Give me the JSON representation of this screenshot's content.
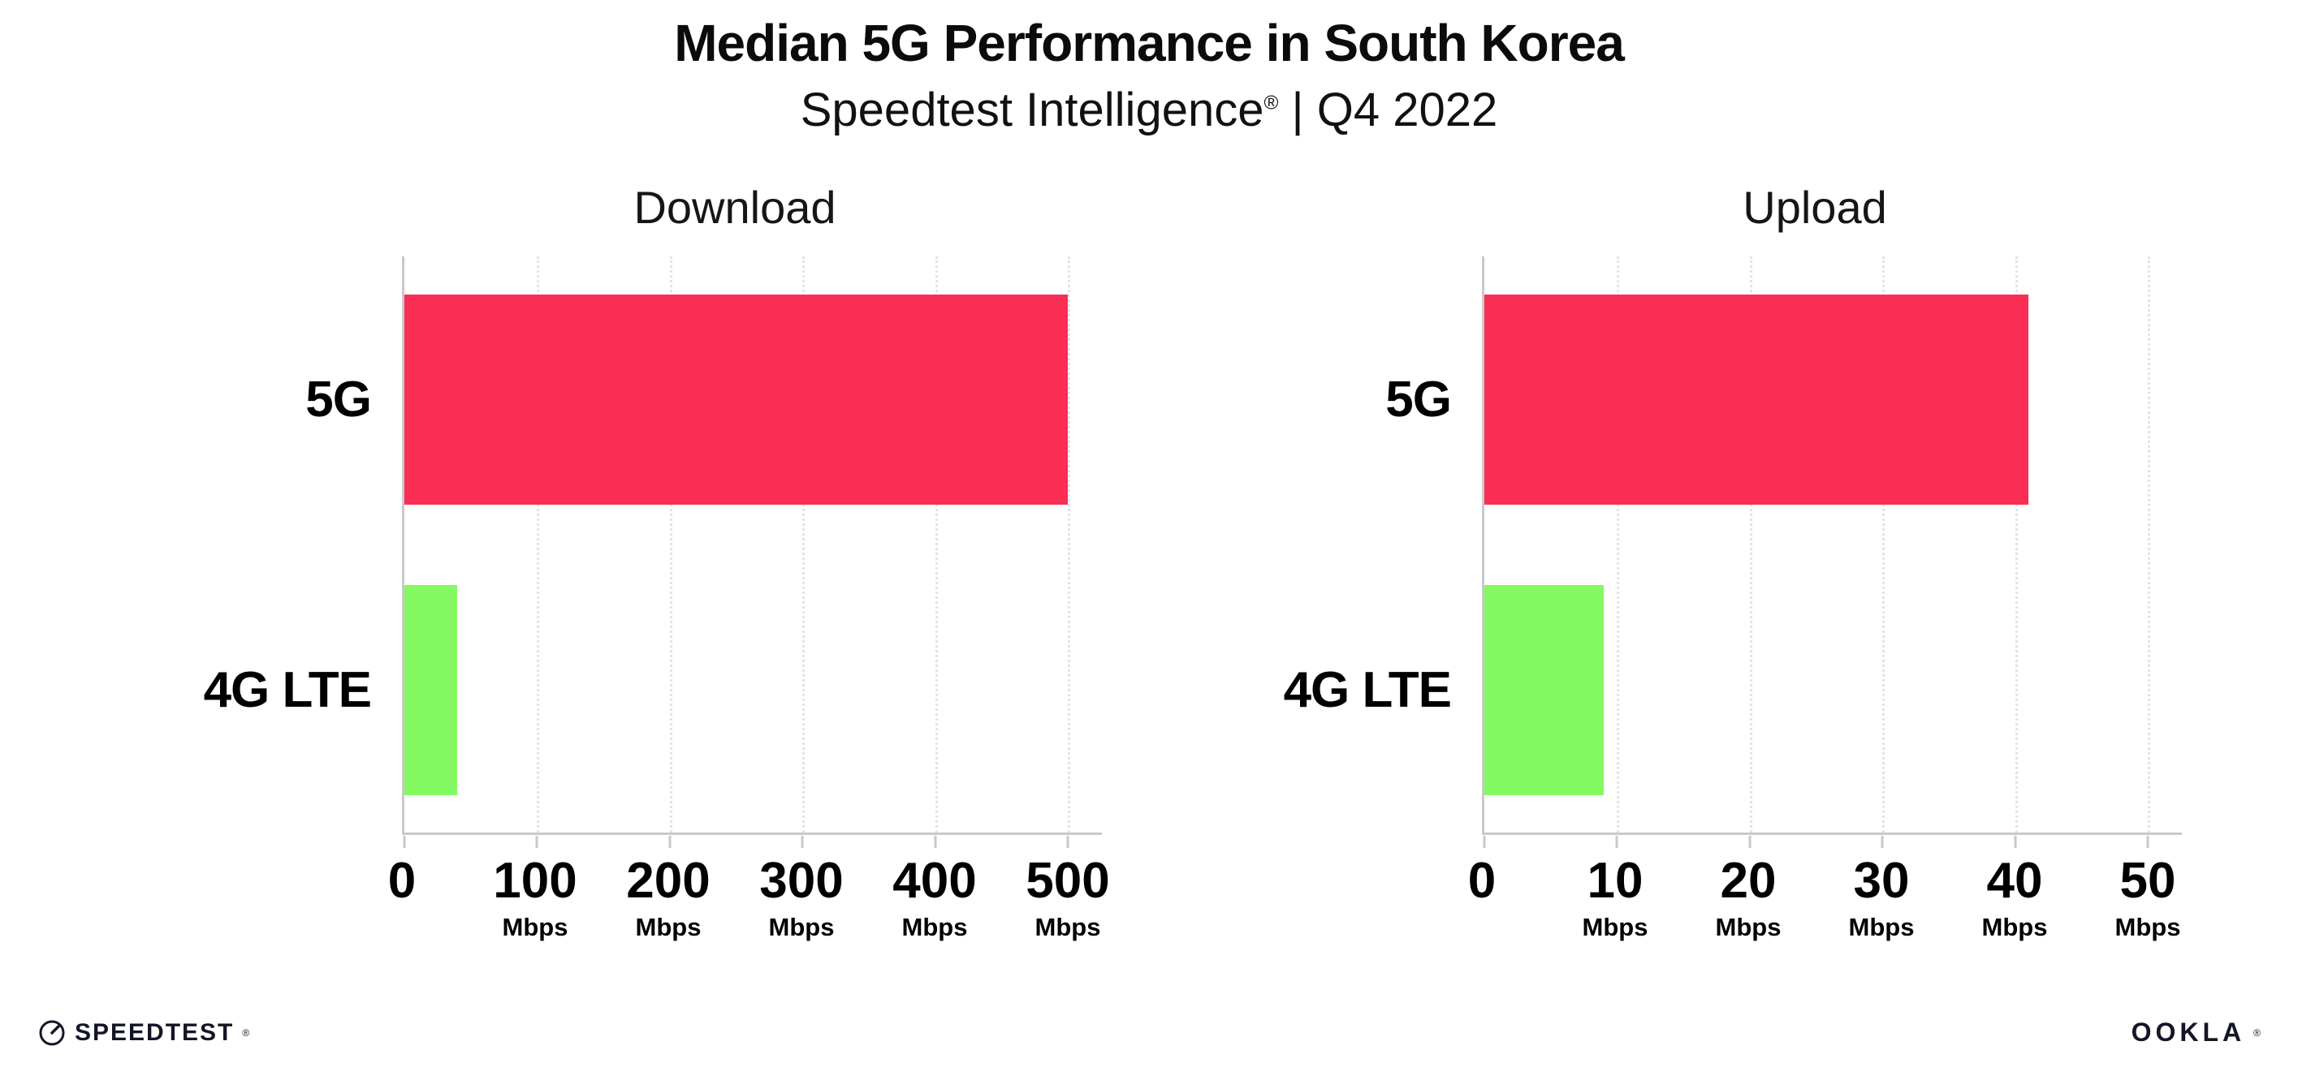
{
  "header": {
    "title": "Median 5G Performance in South Korea",
    "subtitle_brand": "Speedtest Intelligence",
    "subtitle_reg": "®",
    "subtitle_rest": " | Q4 2022"
  },
  "chart_data": [
    {
      "type": "bar",
      "orientation": "horizontal",
      "title": "Download",
      "categories": [
        "5G",
        "4G LTE"
      ],
      "values": [
        500,
        40
      ],
      "unit": "Mbps",
      "xlim": [
        0,
        500
      ],
      "xticks": [
        0,
        100,
        200,
        300,
        400,
        500
      ],
      "colors": [
        "#fa2d55",
        "#84f961"
      ],
      "grid": "dotted-vertical",
      "legend": "none"
    },
    {
      "type": "bar",
      "orientation": "horizontal",
      "title": "Upload",
      "categories": [
        "5G",
        "4G LTE"
      ],
      "values": [
        41,
        9
      ],
      "unit": "Mbps",
      "xlim": [
        0,
        50
      ],
      "xticks": [
        0,
        10,
        20,
        30,
        40,
        50
      ],
      "colors": [
        "#fa2d55",
        "#84f961"
      ],
      "grid": "dotted-vertical",
      "legend": "none"
    }
  ],
  "colors": {
    "bar_5g": "#fa2d55",
    "bar_4g_lte": "#84f961",
    "axis": "#c9c9c9",
    "gridline": "#e3e3e3",
    "text": "#000000",
    "logo": "#141526"
  },
  "footer": {
    "speedtest_label": "SPEEDTEST",
    "speedtest_reg": "®",
    "ookla_label": "OOKLA",
    "ookla_reg": "®"
  }
}
